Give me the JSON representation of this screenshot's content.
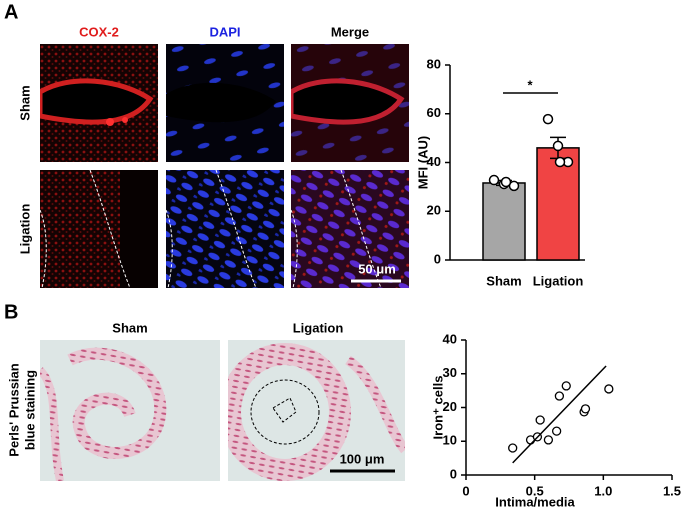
{
  "panel_a": {
    "label": "A",
    "columns": [
      "COX-2",
      "DAPI",
      "Merge"
    ],
    "rows": [
      "Sham",
      "Ligation"
    ],
    "scale_bar": "50 μm"
  },
  "panel_b": {
    "label": "B",
    "columns": [
      "Sham",
      "Ligation"
    ],
    "row_label": [
      "Perls' Prussian",
      "blue staining"
    ],
    "scale_bar": "100 μm"
  },
  "chart_data": [
    {
      "type": "bar",
      "categories": [
        "Sham",
        "Ligation"
      ],
      "values": [
        31.6,
        46
      ],
      "errors": [
        1,
        4.3
      ],
      "points": [
        [
          32.8,
          31.2,
          30.4,
          32
        ],
        [
          57.8,
          46.8,
          40.2,
          40.2
        ]
      ],
      "colors": [
        "#a6a6a6",
        "#f04444"
      ],
      "y_label": "MFI (AU)",
      "annotation": "*",
      "ylim": [
        0,
        80
      ],
      "yticks": [
        0,
        20,
        40,
        60,
        80
      ]
    },
    {
      "type": "scatter",
      "x": [
        0.34,
        0.47,
        0.52,
        0.54,
        0.6,
        0.66,
        0.68,
        0.73,
        0.86,
        0.87,
        1.04
      ],
      "y": [
        8,
        10.4,
        11.3,
        16.3,
        10.4,
        13,
        23.4,
        26.4,
        18.7,
        19.6,
        25.5
      ],
      "trendline": {
        "x": [
          0.34,
          1.02
        ],
        "y": [
          3.6,
          32.3
        ]
      },
      "x_label": "Intima/media",
      "y_label": "Iron⁺ cells",
      "xlim": [
        0,
        1.5
      ],
      "xticks": [
        0,
        0.5,
        {
          "value": 1,
          "label": "1.0"
        },
        1.5
      ],
      "ylim": [
        0,
        40
      ],
      "yticks": [
        0,
        10,
        20,
        30,
        40
      ]
    }
  ]
}
